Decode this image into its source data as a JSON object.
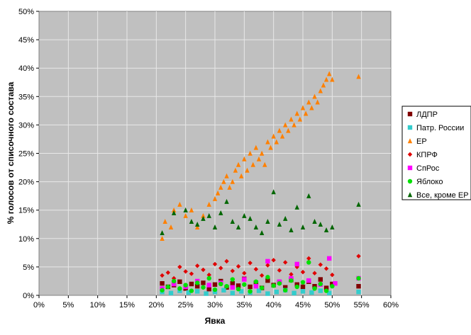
{
  "chart_data": {
    "type": "scatter",
    "title": "",
    "xlabel": "Явка",
    "ylabel": "% голосов от списочного состава",
    "xlim": [
      0,
      60
    ],
    "ylim": [
      0,
      50
    ],
    "x_ticks": [
      "0%",
      "5%",
      "10%",
      "15%",
      "20%",
      "25%",
      "30%",
      "35%",
      "40%",
      "45%",
      "50%",
      "55%",
      "60%"
    ],
    "y_ticks": [
      "0%",
      "5%",
      "10%",
      "15%",
      "20%",
      "25%",
      "30%",
      "35%",
      "40%",
      "45%",
      "50%"
    ],
    "grid": true,
    "legend_position": "right",
    "series": [
      {
        "name": "ЛДПР",
        "color": "#800000",
        "marker": "square",
        "points": [
          [
            21,
            2.1
          ],
          [
            22,
            1.5
          ],
          [
            23,
            1.8
          ],
          [
            24,
            2.4
          ],
          [
            25,
            1.2
          ],
          [
            26,
            2
          ],
          [
            27,
            1.6
          ],
          [
            28,
            2.2
          ],
          [
            29,
            1.1
          ],
          [
            30,
            1.9
          ],
          [
            31,
            2.5
          ],
          [
            32,
            1.4
          ],
          [
            33,
            2.1
          ],
          [
            34,
            1.7
          ],
          [
            35,
            2.9
          ],
          [
            36,
            1.5
          ],
          [
            37,
            2.2
          ],
          [
            38,
            1.3
          ],
          [
            39,
            2.6
          ],
          [
            40,
            1.8
          ],
          [
            41,
            2.3
          ],
          [
            42,
            1.4
          ],
          [
            43,
            2.7
          ],
          [
            44,
            1.9
          ],
          [
            45,
            1.5
          ],
          [
            46,
            2.4
          ],
          [
            47,
            1.6
          ],
          [
            48,
            2.8
          ],
          [
            49,
            1.3
          ],
          [
            50,
            2
          ],
          [
            54.5,
            1.6
          ]
        ]
      },
      {
        "name": "Патр. России",
        "color": "#33cccc",
        "marker": "square",
        "points": [
          [
            21,
            0.6
          ],
          [
            22.5,
            0.4
          ],
          [
            24,
            0.8
          ],
          [
            25.5,
            0.5
          ],
          [
            27,
            0.7
          ],
          [
            28.5,
            0.3
          ],
          [
            30,
            0.6
          ],
          [
            31.5,
            0.9
          ],
          [
            33,
            0.4
          ],
          [
            34.5,
            0.7
          ],
          [
            36,
            0.5
          ],
          [
            37.5,
            0.8
          ],
          [
            39,
            0.3
          ],
          [
            40.5,
            0.6
          ],
          [
            42,
            0.9
          ],
          [
            43.5,
            0.4
          ],
          [
            45,
            0.7
          ],
          [
            46.5,
            0.5
          ],
          [
            48,
            0.8
          ],
          [
            49.5,
            0.4
          ],
          [
            54.5,
            0.6
          ]
        ]
      },
      {
        "name": "ЕР",
        "color": "#ff8000",
        "marker": "triangle",
        "points": [
          [
            21,
            10
          ],
          [
            21.5,
            13
          ],
          [
            22.5,
            12
          ],
          [
            23,
            15
          ],
          [
            24,
            16
          ],
          [
            25,
            14
          ],
          [
            26,
            15
          ],
          [
            27,
            12
          ],
          [
            28,
            14
          ],
          [
            29,
            16
          ],
          [
            30,
            17
          ],
          [
            30.5,
            18
          ],
          [
            31,
            19
          ],
          [
            31.5,
            20
          ],
          [
            32,
            21
          ],
          [
            32.5,
            19
          ],
          [
            33,
            20
          ],
          [
            33.5,
            22
          ],
          [
            34,
            23
          ],
          [
            34.5,
            21
          ],
          [
            35,
            24
          ],
          [
            35.5,
            22
          ],
          [
            36,
            25
          ],
          [
            36.5,
            23
          ],
          [
            37,
            26
          ],
          [
            37.5,
            24
          ],
          [
            38,
            25
          ],
          [
            38.5,
            23
          ],
          [
            39,
            27
          ],
          [
            39.5,
            26
          ],
          [
            40,
            28
          ],
          [
            40.5,
            27
          ],
          [
            41,
            29
          ],
          [
            41.5,
            28
          ],
          [
            42,
            30
          ],
          [
            42.5,
            29
          ],
          [
            43,
            31
          ],
          [
            43.5,
            30
          ],
          [
            44,
            32
          ],
          [
            44.5,
            31
          ],
          [
            45,
            33
          ],
          [
            45.5,
            32
          ],
          [
            46,
            34
          ],
          [
            46.5,
            33
          ],
          [
            47,
            35
          ],
          [
            47.5,
            34
          ],
          [
            48,
            36
          ],
          [
            48.5,
            37
          ],
          [
            49,
            38
          ],
          [
            49.5,
            39
          ],
          [
            50,
            38
          ],
          [
            54.5,
            38.5
          ]
        ]
      },
      {
        "name": "КПРФ",
        "color": "#e00000",
        "marker": "diamond",
        "points": [
          [
            21,
            3.5
          ],
          [
            22,
            4
          ],
          [
            23,
            3
          ],
          [
            24,
            5
          ],
          [
            25,
            4.2
          ],
          [
            26,
            3.8
          ],
          [
            27,
            5.2
          ],
          [
            28,
            4.5
          ],
          [
            29,
            3.6
          ],
          [
            30,
            5.5
          ],
          [
            31,
            4.8
          ],
          [
            32,
            6
          ],
          [
            33,
            4.3
          ],
          [
            34,
            5.1
          ],
          [
            35,
            3.9
          ],
          [
            36,
            5.7
          ],
          [
            37,
            4.6
          ],
          [
            38,
            3.5
          ],
          [
            39,
            5.3
          ],
          [
            40,
            6.2
          ],
          [
            41,
            4.4
          ],
          [
            42,
            5.8
          ],
          [
            43,
            3.7
          ],
          [
            44,
            5
          ],
          [
            45,
            4.1
          ],
          [
            46,
            6.5
          ],
          [
            47,
            3.9
          ],
          [
            48,
            5.4
          ],
          [
            49,
            4.7
          ],
          [
            50,
            3.6
          ],
          [
            54.5,
            6.9
          ]
        ]
      },
      {
        "name": "СпРос",
        "color": "#ff00ff",
        "marker": "square",
        "points": [
          [
            21,
            1.2
          ],
          [
            23,
            2
          ],
          [
            25,
            1.5
          ],
          [
            27,
            2.5
          ],
          [
            29,
            1.8
          ],
          [
            31,
            2.2
          ],
          [
            33,
            1.4
          ],
          [
            35,
            2.8
          ],
          [
            37,
            1.6
          ],
          [
            39,
            6
          ],
          [
            41,
            2.4
          ],
          [
            43,
            3
          ],
          [
            44,
            5.5
          ],
          [
            46,
            2.6
          ],
          [
            48,
            1.9
          ],
          [
            49.5,
            6.5
          ],
          [
            50.5,
            2.1
          ],
          [
            54.5,
            3
          ]
        ]
      },
      {
        "name": "Яблоко",
        "color": "#00e000",
        "marker": "circle",
        "points": [
          [
            21,
            0.9
          ],
          [
            22,
            1.5
          ],
          [
            23,
            2.5
          ],
          [
            24,
            1.2
          ],
          [
            25,
            1.8
          ],
          [
            26,
            0.8
          ],
          [
            27,
            2.2
          ],
          [
            28,
            1.4
          ],
          [
            29,
            3
          ],
          [
            30,
            1
          ],
          [
            31,
            2
          ],
          [
            32,
            1.6
          ],
          [
            33,
            2.8
          ],
          [
            34,
            1.1
          ],
          [
            35,
            1.9
          ],
          [
            36,
            0.7
          ],
          [
            37,
            2.4
          ],
          [
            38,
            1.3
          ],
          [
            39,
            3.2
          ],
          [
            40,
            1.7
          ],
          [
            41,
            2.1
          ],
          [
            42,
            0.9
          ],
          [
            43,
            2.6
          ],
          [
            44,
            1.5
          ],
          [
            45,
            2.3
          ],
          [
            46,
            5.8
          ],
          [
            47,
            1.2
          ],
          [
            48,
            2
          ],
          [
            49,
            0.8
          ],
          [
            50,
            1.6
          ],
          [
            54.5,
            3
          ]
        ]
      },
      {
        "name": "Все, кроме ЕР",
        "color": "#006600",
        "marker": "triangle",
        "points": [
          [
            21,
            11
          ],
          [
            23,
            14.5
          ],
          [
            25,
            15
          ],
          [
            26,
            13
          ],
          [
            27,
            12.5
          ],
          [
            28,
            13.5
          ],
          [
            29,
            14
          ],
          [
            30,
            12
          ],
          [
            31,
            14.5
          ],
          [
            32,
            16.5
          ],
          [
            33,
            13
          ],
          [
            34,
            12
          ],
          [
            35,
            14
          ],
          [
            36,
            13.5
          ],
          [
            37,
            12
          ],
          [
            38,
            11
          ],
          [
            39,
            13
          ],
          [
            40,
            18.2
          ],
          [
            41,
            12.5
          ],
          [
            42,
            13.5
          ],
          [
            43,
            11.5
          ],
          [
            44,
            15.5
          ],
          [
            45,
            12
          ],
          [
            46,
            17.5
          ],
          [
            47,
            13
          ],
          [
            48,
            12.5
          ],
          [
            49,
            11.5
          ],
          [
            50,
            12
          ],
          [
            54.5,
            16
          ]
        ]
      }
    ]
  }
}
